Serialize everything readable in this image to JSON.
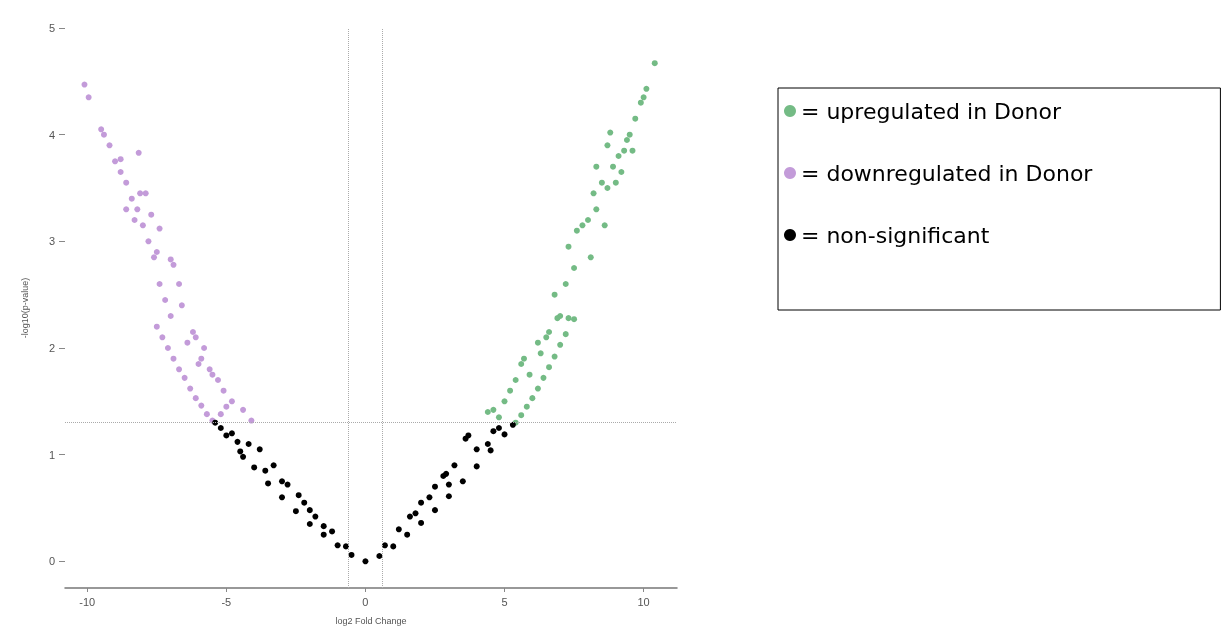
{
  "chart_data": {
    "type": "scatter",
    "xlabel": "log2 Fold Change",
    "ylabel": "-log10(p-value)",
    "xlim": [
      -10.8,
      11.2
    ],
    "xticks": [
      -10,
      -5,
      0,
      5,
      10
    ],
    "ylim": [
      -0.25,
      5
    ],
    "yticks": [
      0,
      1,
      2,
      3,
      4,
      5
    ],
    "grid": false,
    "legend": "right",
    "marker": "circle",
    "ref_lines": [
      {
        "axis": "x",
        "value": -0.6,
        "line_style": "dotted",
        "color": "#aaaaaa"
      },
      {
        "axis": "x",
        "value": 0.6,
        "line_style": "dotted",
        "color": "#aaaaaa"
      },
      {
        "axis": "y",
        "value": 1.3,
        "line_style": "dotted",
        "color": "#aaaaaa"
      }
    ],
    "series": [
      {
        "name": "= upregulated in Donor",
        "color": "#74bb85",
        "x": [
          5.4,
          5.6,
          5.8,
          6.0,
          6.2,
          6.4,
          6.6,
          6.8,
          7.0,
          7.2,
          7.5,
          4.4,
          4.6,
          4.8,
          5.0,
          5.2,
          5.4,
          5.6,
          5.7,
          5.9,
          6.2,
          6.3,
          6.5,
          6.6,
          6.9,
          7.0,
          7.3,
          6.8,
          7.2,
          7.5,
          7.3,
          7.6,
          7.8,
          8.0,
          8.1,
          8.2,
          8.3,
          8.5,
          8.6,
          8.7,
          8.9,
          9.0,
          9.1,
          9.2,
          8.3,
          8.7,
          8.8,
          9.4,
          9.5,
          9.6,
          9.7,
          9.9,
          10.0,
          10.1,
          10.4,
          9.3
        ],
        "values": [
          1.3,
          1.37,
          1.45,
          1.53,
          1.62,
          1.72,
          1.82,
          1.92,
          2.03,
          2.13,
          2.27,
          1.4,
          1.42,
          1.35,
          1.5,
          1.6,
          1.7,
          1.85,
          1.9,
          1.75,
          2.05,
          1.95,
          2.1,
          2.15,
          2.28,
          2.3,
          2.28,
          2.5,
          2.6,
          2.75,
          2.95,
          3.1,
          3.15,
          3.2,
          2.85,
          3.45,
          3.3,
          3.55,
          3.15,
          3.5,
          3.7,
          3.55,
          3.8,
          3.65,
          3.7,
          3.9,
          4.02,
          3.95,
          4.0,
          3.85,
          4.15,
          4.3,
          4.35,
          4.43,
          4.67,
          3.85
        ]
      },
      {
        "name": "= downregulated in Donor",
        "color": "#c39bd9",
        "x": [
          -7.5,
          -7.3,
          -7.1,
          -6.9,
          -6.7,
          -6.5,
          -6.3,
          -6.1,
          -5.9,
          -5.7,
          -5.5,
          -10.1,
          -9.95,
          -9.5,
          -9.4,
          -9.2,
          -9.0,
          -8.8,
          -8.6,
          -8.4,
          -8.2,
          -8.0,
          -7.8,
          -7.6,
          -7.4,
          -7.2,
          -7.0,
          -8.8,
          -8.15,
          -8.1,
          -7.9,
          -7.7,
          -7.4,
          -7.0,
          -6.9,
          -6.7,
          -6.6,
          -6.2,
          -6.1,
          -5.8,
          -5.9,
          -5.6,
          -5.5,
          -5.3,
          -5.1,
          -4.8,
          -4.4,
          -4.1,
          -5.0,
          -5.2,
          -6.0,
          -6.4,
          -8.6,
          -8.3,
          -7.5
        ],
        "values": [
          2.2,
          2.1,
          2.0,
          1.9,
          1.8,
          1.72,
          1.62,
          1.53,
          1.46,
          1.38,
          1.32,
          4.47,
          4.35,
          4.05,
          4.0,
          3.9,
          3.75,
          3.65,
          3.55,
          3.4,
          3.3,
          3.15,
          3.0,
          2.85,
          2.6,
          2.45,
          2.3,
          3.77,
          3.83,
          3.45,
          3.45,
          3.25,
          3.12,
          2.83,
          2.78,
          2.6,
          2.4,
          2.15,
          2.1,
          2.0,
          1.9,
          1.8,
          1.75,
          1.7,
          1.6,
          1.5,
          1.42,
          1.32,
          1.45,
          1.38,
          1.85,
          2.05,
          3.3,
          3.2,
          2.9
        ]
      },
      {
        "name": "= non-significant",
        "color": "#000000",
        "x": [
          -5.4,
          -5,
          -4.5,
          -4,
          -3.5,
          -3,
          -2.5,
          -2,
          -1.5,
          -1,
          -0.5,
          0,
          -5.2,
          -4.8,
          -4.6,
          -4.2,
          -3.8,
          -3.3,
          -2.8,
          -2.4,
          -2.2,
          -1.8,
          -1.2,
          -0.7,
          -4.4,
          -3.6,
          -3.0,
          -2.0,
          -1.5,
          0.5,
          1,
          1.5,
          2,
          2.5,
          3,
          3.5,
          4,
          4.5,
          5,
          5.3,
          0.7,
          1.2,
          1.6,
          2.0,
          2.3,
          2.8,
          2.9,
          3.2,
          3.6,
          3.7,
          4.0,
          4.4,
          4.6,
          4.8,
          2.5,
          3.0,
          1.8
        ],
        "values": [
          1.3,
          1.18,
          1.03,
          0.88,
          0.73,
          0.6,
          0.47,
          0.35,
          0.25,
          0.15,
          0.06,
          0,
          1.25,
          1.2,
          1.12,
          1.1,
          1.05,
          0.9,
          0.72,
          0.62,
          0.55,
          0.42,
          0.28,
          0.14,
          0.98,
          0.85,
          0.75,
          0.48,
          0.33,
          0.05,
          0.14,
          0.25,
          0.36,
          0.48,
          0.61,
          0.75,
          0.89,
          1.04,
          1.19,
          1.28,
          0.15,
          0.3,
          0.42,
          0.55,
          0.6,
          0.8,
          0.82,
          0.9,
          1.15,
          1.18,
          1.05,
          1.1,
          1.22,
          1.25,
          0.7,
          0.72,
          0.45
        ]
      }
    ]
  }
}
